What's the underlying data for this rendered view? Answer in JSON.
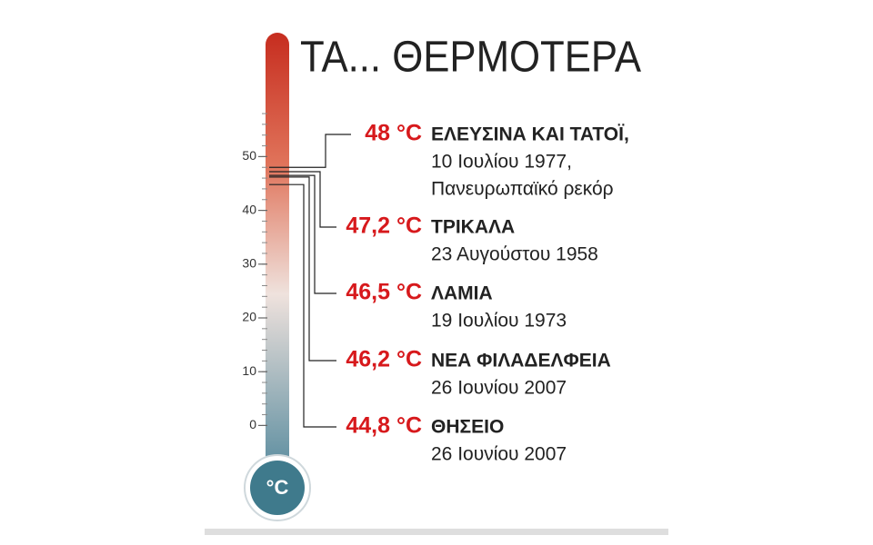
{
  "chart_data": {
    "type": "thermometer",
    "title": "ΤΑ... ΘΕΡΜΟΤΕΡΑ",
    "bulb_label": "°C",
    "ylim": [
      -5,
      70
    ],
    "yticks": [
      0,
      10,
      20,
      30,
      40,
      50
    ],
    "categories": [
      "ΕΛΕΥΣΙΝΑ ΚΑΙ ΤΑΤΟΪ,",
      "ΤΡΙΚΑΛΑ",
      "ΛΑΜΙΑ",
      "ΝΕΑ ΦΙΛΑΔΕΛΦΕΙΑ",
      "ΘΗΣΕΙΟ"
    ],
    "details": [
      [
        "10 Ιουλίου 1977,",
        "Πανευρωπαϊκό ρεκόρ"
      ],
      [
        "23 Αυγούστου 1958"
      ],
      [
        "19 Ιουλίου 1973"
      ],
      [
        "26 Ιουνίου 2007"
      ],
      [
        "26 Ιουνίου 2007"
      ]
    ],
    "values": [
      48,
      47.2,
      46.5,
      46.2,
      44.8
    ],
    "value_labels": [
      "48 °C",
      "47,2 °C",
      "46,5 °C",
      "46,2 °C",
      "44,8 °C"
    ],
    "color": "#d7191c"
  }
}
